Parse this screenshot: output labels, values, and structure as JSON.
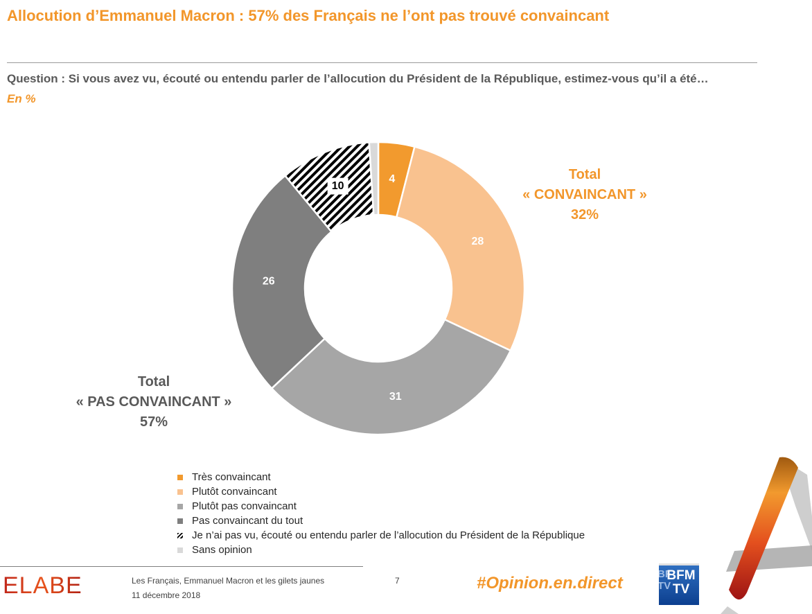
{
  "header": {
    "title": "Allocution d’Emmanuel Macron : 57% des Français ne l’ont pas trouvé convaincant",
    "question": "Question : Si vous avez vu, écouté ou entendu parler de l’allocution du Président de la République, estimez-vous qu’il a été…",
    "unit": "En  %"
  },
  "totals": {
    "convaincant": {
      "line1": "Total",
      "line2": "« CONVAINCANT »",
      "line3": "32%"
    },
    "pas_convaincant": {
      "line1": "Total",
      "line2": "« PAS CONVAINCANT »",
      "line3": "57%"
    }
  },
  "chart_data": {
    "type": "pie",
    "style": "donut",
    "title": "",
    "categories": [
      "Très convaincant",
      "Plutôt convaincant",
      "Plutôt pas convaincant",
      "Pas convaincant du tout",
      "Je n’ai pas vu, écouté ou entendu parler de l’allocution du Président de la République",
      "Sans opinion"
    ],
    "values": [
      4,
      28,
      31,
      26,
      10,
      1
    ],
    "labels": [
      "4",
      "28",
      "31",
      "26",
      "10",
      ""
    ],
    "colors": [
      "#f29a2e",
      "#f9c28f",
      "#a6a6a6",
      "#7f7f7f",
      "hatch",
      "#d9d9d9"
    ],
    "label_colors": [
      "#ffffff",
      "#ffffff",
      "#ffffff",
      "#ffffff",
      "#000000",
      "#ffffff"
    ]
  },
  "footer": {
    "logo": "ELABE",
    "study_title": "Les Français, Emmanuel Macron et les gilets jaunes",
    "study_date": "11 décembre 2018",
    "page": "7",
    "hashtag": "#Opinion.en.direct",
    "partner_logo": "BFM TV"
  }
}
